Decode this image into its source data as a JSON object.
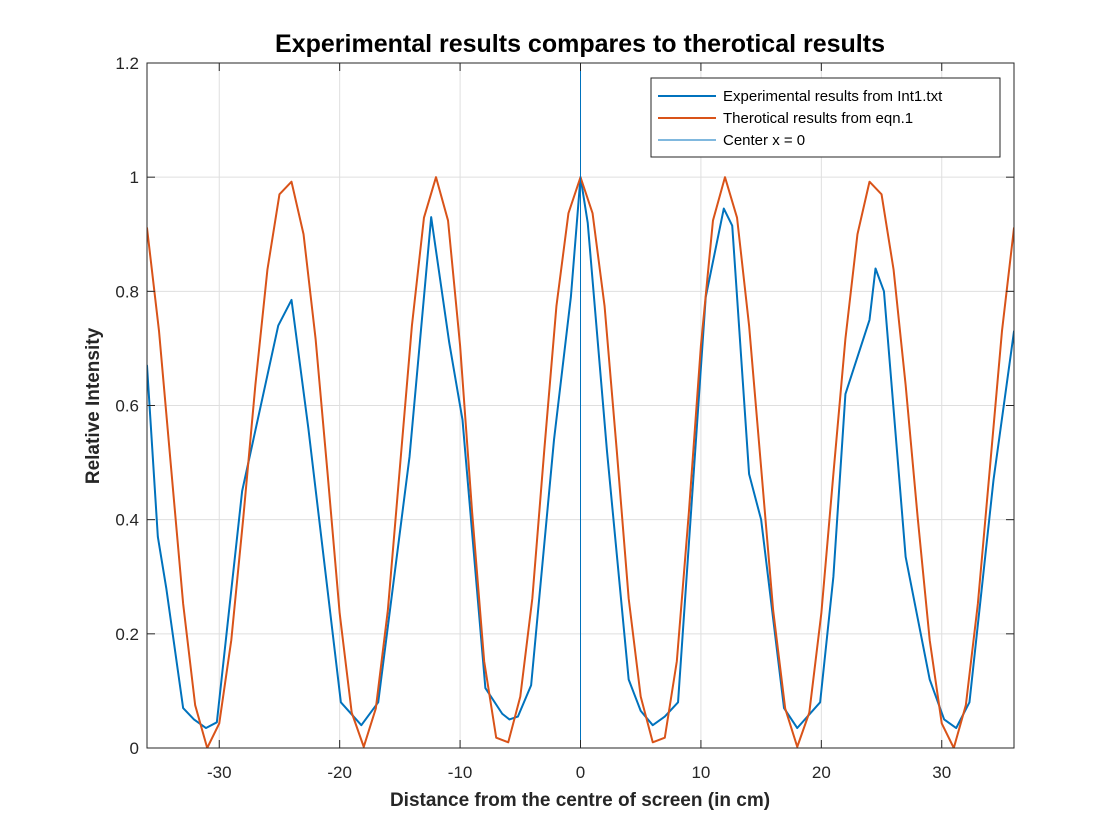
{
  "chart_data": {
    "type": "line",
    "title": "Experimental results compares to therotical results",
    "xlabel": "Distance from the centre of screen (in cm)",
    "ylabel": "Relative Intensity",
    "xlim": [
      -36,
      36
    ],
    "ylim": [
      0,
      1.2
    ],
    "grid": true,
    "legend_position": "top-right",
    "xticks": [
      -30,
      -20,
      -10,
      0,
      10,
      20,
      30
    ],
    "xtick_labels": [
      "-30",
      "-20",
      "-10",
      "0",
      "10",
      "20",
      "30"
    ],
    "yticks": [
      0,
      0.2,
      0.4,
      0.6,
      0.8,
      1,
      1.2
    ],
    "ytick_labels": [
      "0",
      "0.2",
      "0.4",
      "0.6",
      "0.8",
      "1",
      "1.2"
    ],
    "series": [
      {
        "name": "Experimental results from Int1.txt",
        "color": "#0072BD",
        "line_width": 2,
        "x": [
          -36,
          -35.1,
          -34.4,
          -33.0,
          -32.1,
          -31.1,
          -30.2,
          -28.1,
          -25.1,
          -24.0,
          -22.6,
          -19.9,
          -18.2,
          -16.8,
          -14.2,
          -12.4,
          -10.9,
          -9.8,
          -7.9,
          -6.5,
          -5.9,
          -5.2,
          -4.1,
          -2.2,
          -0.8,
          0,
          0.6,
          2.2,
          4.0,
          5.0,
          6.0,
          7.0,
          8.1,
          10.4,
          11.9,
          12.6,
          14.0,
          15.0,
          16.9,
          18.0,
          19.9,
          21.0,
          22.0,
          24.0,
          24.5,
          25.2,
          27.0,
          29.0,
          30.2,
          31.2,
          32.3,
          34.3,
          36.0
        ],
        "y": [
          0.67,
          0.37,
          0.28,
          0.07,
          0.05,
          0.035,
          0.045,
          0.45,
          0.74,
          0.785,
          0.56,
          0.08,
          0.04,
          0.08,
          0.51,
          0.93,
          0.71,
          0.575,
          0.105,
          0.06,
          0.05,
          0.055,
          0.11,
          0.54,
          0.79,
          1.0,
          0.92,
          0.52,
          0.12,
          0.065,
          0.04,
          0.055,
          0.08,
          0.79,
          0.945,
          0.915,
          0.48,
          0.4,
          0.07,
          0.035,
          0.08,
          0.3,
          0.62,
          0.75,
          0.84,
          0.8,
          0.335,
          0.12,
          0.05,
          0.035,
          0.08,
          0.47,
          0.73
        ]
      },
      {
        "name": "Therotical results from eqn.1",
        "color": "#D95319",
        "line_width": 2,
        "formula": "cos^2(pi*x/12.4)",
        "x": [
          -36,
          -35,
          -34,
          -33,
          -32,
          -31,
          -30,
          -29,
          -28,
          -27,
          -26,
          -25,
          -24,
          -23,
          -22,
          -21,
          -20,
          -19,
          -18,
          -17,
          -16,
          -15,
          -14,
          -13,
          -12,
          -11,
          -10,
          -9,
          -8,
          -7,
          -6,
          -5,
          -4,
          -3,
          -2,
          -1,
          0,
          1,
          2,
          3,
          4,
          5,
          6,
          7,
          8,
          9,
          10,
          11,
          12,
          13,
          14,
          15,
          16,
          17,
          18,
          19,
          20,
          21,
          22,
          23,
          24,
          25,
          26,
          27,
          28,
          29,
          30,
          31,
          32,
          33,
          34,
          35,
          36
        ],
        "y": [
          0.911,
          0.73,
          0.491,
          0.253,
          0.075,
          0.0,
          0.043,
          0.189,
          0.404,
          0.636,
          0.838,
          0.97,
          0.992,
          0.9,
          0.717,
          0.48,
          0.236,
          0.062,
          0.002,
          0.069,
          0.241,
          0.491,
          0.74,
          0.929,
          1.0,
          0.924,
          0.705,
          0.413,
          0.152,
          0.018,
          0.01,
          0.09,
          0.262,
          0.524,
          0.774,
          0.937,
          1.0,
          0.937,
          0.774,
          0.524,
          0.262,
          0.09,
          0.01,
          0.018,
          0.152,
          0.413,
          0.705,
          0.924,
          1.0,
          0.929,
          0.74,
          0.491,
          0.241,
          0.069,
          0.002,
          0.062,
          0.236,
          0.48,
          0.717,
          0.9,
          0.992,
          0.97,
          0.838,
          0.636,
          0.404,
          0.189,
          0.043,
          0.0,
          0.075,
          0.253,
          0.491,
          0.73,
          0.911
        ]
      },
      {
        "name": "Center x = 0",
        "color": "#0072BD",
        "line_width": 1,
        "x": [
          0,
          0
        ],
        "y": [
          0,
          1.2
        ]
      }
    ]
  }
}
